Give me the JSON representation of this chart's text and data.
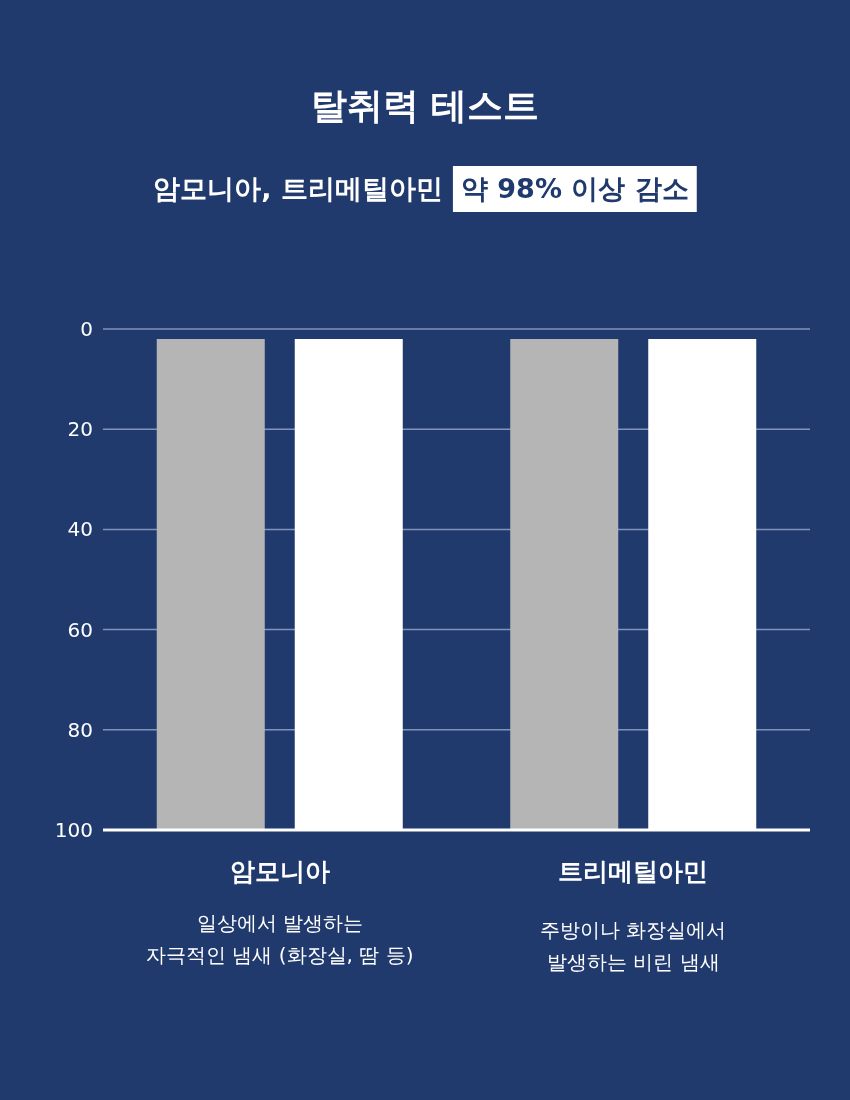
{
  "chart_data": {
    "type": "bar",
    "title": "탈취력 테스트",
    "subtitle": "암모니아, 트리메틸아민",
    "annotations": [
      "약 98% 이상 감소",
      "일상에서 발생하는\n자극적인 냄새 (화장실, 땀 등)",
      "주방이나 화장실에서\n발생하는 비린 냄새"
    ],
    "categories": [
      "암모니아",
      "트리메틸아민"
    ],
    "series": [
      {
        "color": "#b5b5b5",
        "base": [
          2,
          2
        ],
        "values": [
          98,
          98
        ]
      },
      {
        "color": "#ffffff",
        "base": [
          2,
          2
        ],
        "values": [
          98,
          98
        ]
      }
    ],
    "ylim": [
      100,
      0
    ],
    "yticks": [
      0,
      20,
      40,
      60,
      80,
      100
    ],
    "grid": "y"
  }
}
